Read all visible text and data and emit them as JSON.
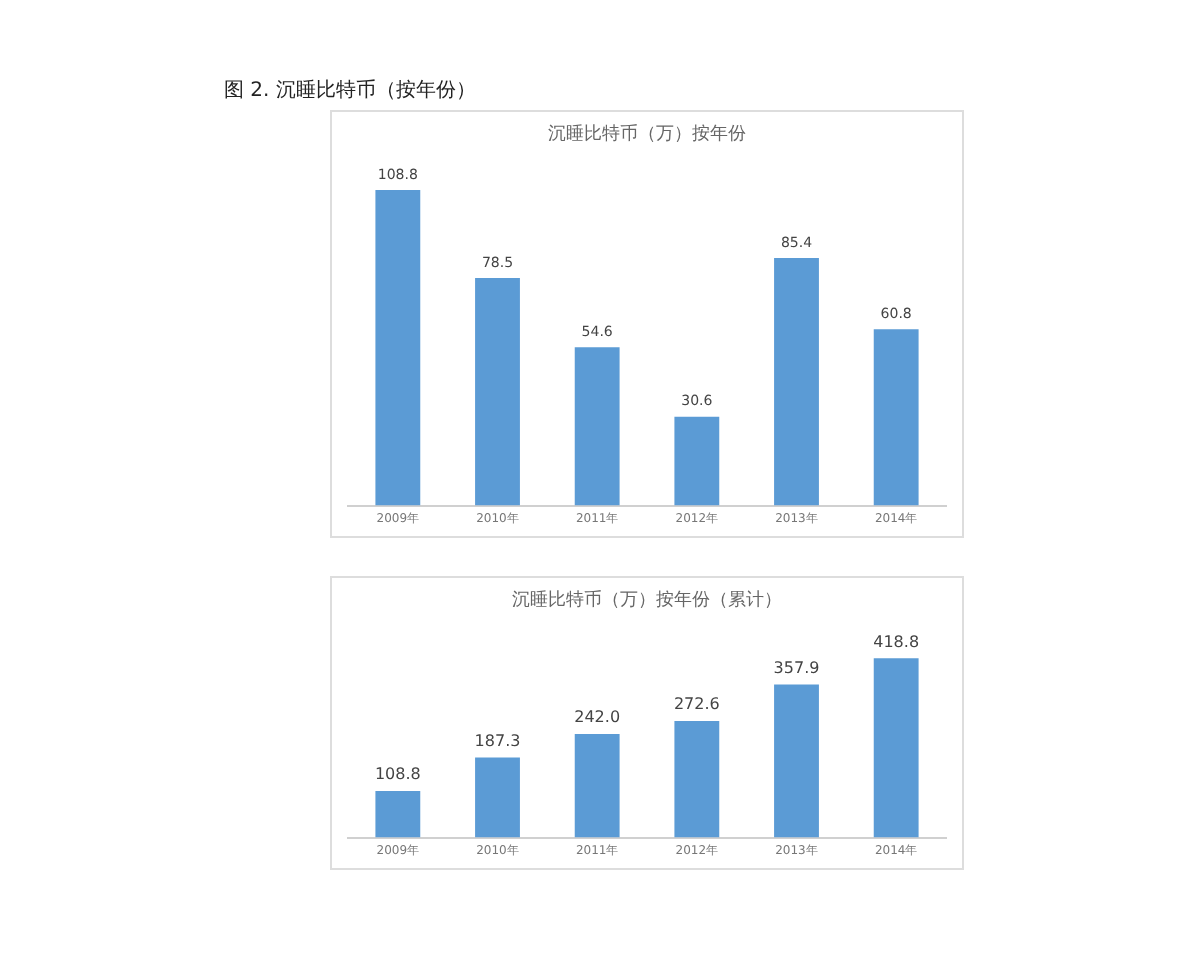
{
  "chart_data": [
    {
      "type": "bar",
      "title": "沉睡比特币（万）按年份",
      "annotations": [
        "图 2. 沉睡比特币（按年份）"
      ],
      "categories": [
        "2009年",
        "2010年",
        "2011年",
        "2012年",
        "2013年",
        "2014年"
      ],
      "values": [
        108.8,
        78.5,
        54.6,
        30.6,
        85.4,
        60.8
      ],
      "color": "#5b9bd5",
      "data_labels": true,
      "grid": false,
      "legend": false,
      "tick_labels": "x"
    },
    {
      "type": "bar",
      "title": "沉睡比特币（万）按年份（累计）",
      "categories": [
        "2009年",
        "2010年",
        "2011年",
        "2012年",
        "2013年",
        "2014年"
      ],
      "values": [
        108.8,
        187.3,
        242.0,
        272.6,
        357.9,
        418.8
      ],
      "value_labels": [
        "108.8",
        "187.3",
        "242.0",
        "272.6",
        "357.9",
        "418.8"
      ],
      "color": "#5b9bd5",
      "grid": false,
      "legend": false,
      "tick_labels": "x"
    }
  ]
}
